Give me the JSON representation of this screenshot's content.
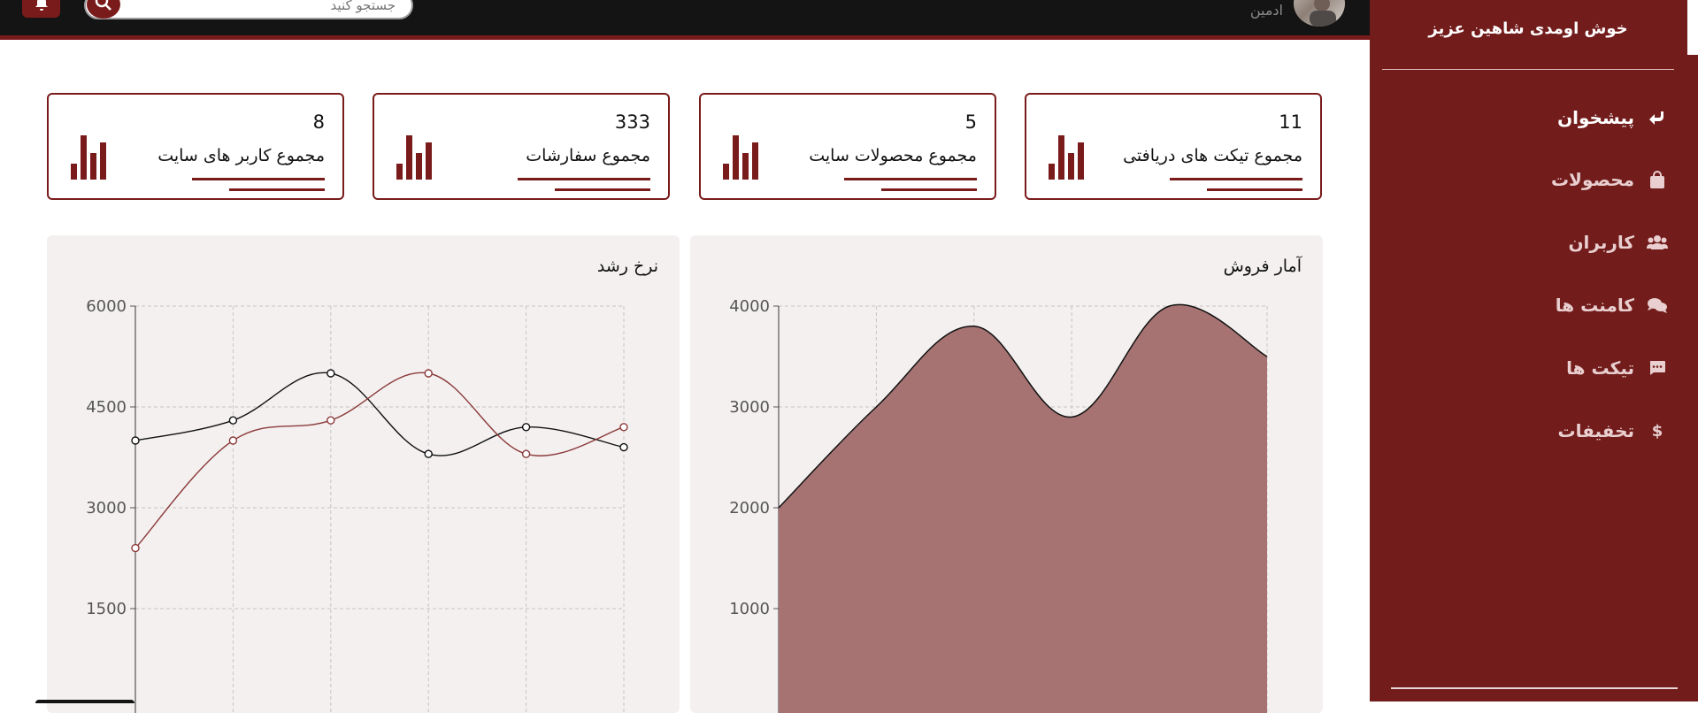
{
  "topbar": {
    "search_placeholder": "جستجو کنید",
    "admin_label": "ادمین"
  },
  "sidebar": {
    "welcome": "خوش اومدی شاهین عزیز",
    "items": [
      {
        "label": "پیشخوان",
        "icon": "reply-arrow-icon",
        "active": true
      },
      {
        "label": "محصولات",
        "icon": "shopping-bag-icon",
        "active": false
      },
      {
        "label": "کاربران",
        "icon": "users-icon",
        "active": false
      },
      {
        "label": "کامنت ها",
        "icon": "comments-icon",
        "active": false
      },
      {
        "label": "تیکت ها",
        "icon": "message-icon",
        "active": false
      },
      {
        "label": "تخفیفات",
        "icon": "dollar-icon",
        "active": false
      }
    ]
  },
  "cards": [
    {
      "value": "8",
      "label": "مجموع کاربر های سایت"
    },
    {
      "value": "333",
      "label": "مجموع سفارشات"
    },
    {
      "value": "5",
      "label": "مجموع محصولات سایت"
    },
    {
      "value": "11",
      "label": "مجموع تیکت های دریافتی"
    }
  ],
  "colors": {
    "brand": "#721c1c",
    "accent": "#7a1b1b",
    "area_fill": "#a67372",
    "panel_bg": "#f4f0f0",
    "topbar": "#141414"
  },
  "chart_data": [
    {
      "type": "line",
      "title": "نرخ رشد",
      "x": [
        0,
        1,
        2,
        3,
        4,
        5
      ],
      "series": [
        {
          "values": [
            4000,
            4300,
            5000,
            3800,
            4200,
            3900
          ],
          "color": "#111111"
        },
        {
          "values": [
            2400,
            4000,
            4300,
            5000,
            3800,
            4200
          ],
          "color": "#8b3a3a"
        }
      ],
      "ylim": [
        0,
        6000
      ],
      "yticks": [
        1500,
        3000,
        4500,
        6000
      ],
      "grid": true
    },
    {
      "type": "area",
      "title": "آمار فروش",
      "x": [
        0,
        1,
        2,
        3,
        4,
        5
      ],
      "series": [
        {
          "values": [
            2000,
            3000,
            3800,
            2900,
            4000,
            3500
          ],
          "color": "#111111"
        }
      ],
      "ylim": [
        0,
        4000
      ],
      "yticks": [
        1000,
        2000,
        3000,
        4000
      ],
      "grid": true
    }
  ]
}
